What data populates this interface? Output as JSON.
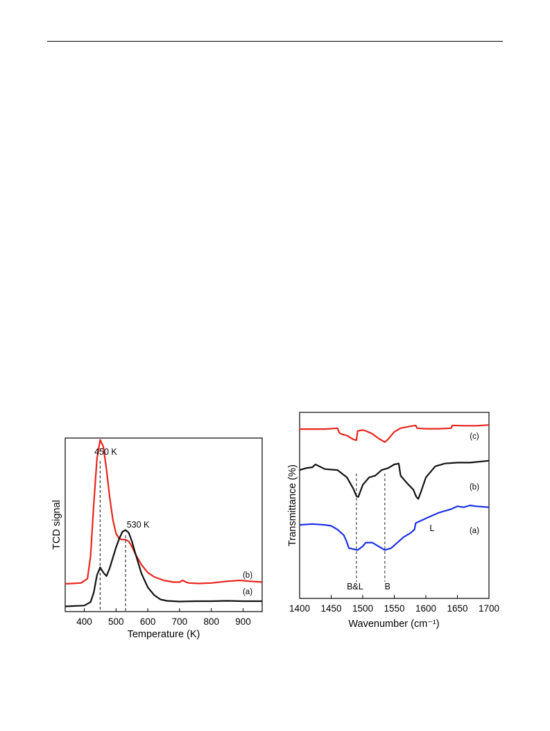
{
  "chart_data": [
    {
      "type": "line",
      "title": "",
      "xlabel": "Temperature (K)",
      "ylabel": "TCD signal",
      "xlim": [
        340,
        960
      ],
      "ylim": [
        0,
        1
      ],
      "xticks": [
        "400",
        "500",
        "600",
        "700",
        "800",
        "900"
      ],
      "grid": false,
      "legend": "none",
      "annotations": [
        {
          "text": "450 K",
          "x": 450
        },
        {
          "text": "530 K",
          "x": 530
        }
      ],
      "series": [
        {
          "name": "(b)",
          "color": "#e8241c",
          "x": [
            340,
            390,
            410,
            420,
            430,
            440,
            450,
            460,
            470,
            480,
            490,
            500,
            510,
            520,
            530,
            540,
            550,
            560,
            580,
            600,
            620,
            650,
            680,
            700,
            710,
            720,
            730,
            760,
            800,
            850,
            890,
            920,
            960
          ],
          "y": [
            0.16,
            0.165,
            0.19,
            0.32,
            0.62,
            0.88,
            0.99,
            0.95,
            0.82,
            0.66,
            0.53,
            0.45,
            0.42,
            0.415,
            0.415,
            0.405,
            0.375,
            0.335,
            0.27,
            0.225,
            0.2,
            0.18,
            0.17,
            0.17,
            0.18,
            0.17,
            0.165,
            0.162,
            0.165,
            0.175,
            0.18,
            0.175,
            0.17
          ]
        },
        {
          "name": "(a)",
          "color": "#111111",
          "x": [
            340,
            400,
            420,
            430,
            440,
            450,
            460,
            470,
            480,
            490,
            500,
            510,
            520,
            530,
            540,
            550,
            560,
            580,
            600,
            620,
            640,
            660,
            680,
            700,
            750,
            800,
            850,
            900,
            960
          ],
          "y": [
            0.03,
            0.035,
            0.055,
            0.11,
            0.21,
            0.255,
            0.225,
            0.205,
            0.25,
            0.31,
            0.37,
            0.42,
            0.46,
            0.47,
            0.455,
            0.405,
            0.34,
            0.22,
            0.14,
            0.095,
            0.07,
            0.062,
            0.06,
            0.058,
            0.06,
            0.06,
            0.062,
            0.06,
            0.06
          ]
        }
      ]
    },
    {
      "type": "line",
      "title": "",
      "xlabel": "Wavenumber (cm⁻¹)",
      "ylabel": "Transmittance (%)",
      "xlim": [
        1400,
        1700
      ],
      "ylim": [
        0,
        1
      ],
      "xticks": [
        "1400",
        "1450",
        "1500",
        "1550",
        "1600",
        "1650",
        "1700"
      ],
      "grid": false,
      "legend": "none",
      "annotations": [
        {
          "text": "B&L",
          "x": 1490
        },
        {
          "text": "B",
          "x": 1535
        },
        {
          "text": "L",
          "x": 1590
        }
      ],
      "series": [
        {
          "name": "(c)",
          "color": "#e8241c",
          "x": [
            1400,
            1420,
            1440,
            1460,
            1463,
            1465,
            1475,
            1485,
            1490,
            1492,
            1500,
            1505,
            1515,
            1525,
            1535,
            1540,
            1550,
            1560,
            1575,
            1584,
            1586,
            1600,
            1620,
            1640,
            1642,
            1660,
            1680,
            1700
          ],
          "y": [
            0.91,
            0.91,
            0.91,
            0.915,
            0.89,
            0.885,
            0.875,
            0.855,
            0.85,
            0.9,
            0.905,
            0.9,
            0.885,
            0.86,
            0.84,
            0.855,
            0.895,
            0.915,
            0.925,
            0.93,
            0.915,
            0.912,
            0.912,
            0.915,
            0.93,
            0.928,
            0.928,
            0.932
          ]
        },
        {
          "name": "(b)",
          "color": "#111111",
          "x": [
            1400,
            1410,
            1420,
            1425,
            1440,
            1460,
            1475,
            1485,
            1490,
            1493,
            1500,
            1510,
            1520,
            1530,
            1540,
            1550,
            1557,
            1560,
            1570,
            1580,
            1585,
            1588,
            1592,
            1600,
            1615,
            1630,
            1650,
            1670,
            1700
          ],
          "y": [
            0.69,
            0.7,
            0.705,
            0.72,
            0.695,
            0.69,
            0.65,
            0.59,
            0.55,
            0.545,
            0.61,
            0.65,
            0.66,
            0.69,
            0.7,
            0.72,
            0.725,
            0.66,
            0.62,
            0.585,
            0.545,
            0.535,
            0.57,
            0.65,
            0.71,
            0.725,
            0.73,
            0.73,
            0.74
          ]
        },
        {
          "name": "(a)",
          "color": "#1a2fe6",
          "x": [
            1400,
            1420,
            1440,
            1450,
            1460,
            1470,
            1474,
            1478,
            1485,
            1492,
            1500,
            1505,
            1515,
            1525,
            1535,
            1545,
            1555,
            1565,
            1575,
            1582,
            1584,
            1600,
            1620,
            1640,
            1650,
            1660,
            1670,
            1680,
            1700
          ],
          "y": [
            0.395,
            0.4,
            0.395,
            0.39,
            0.37,
            0.34,
            0.31,
            0.27,
            0.265,
            0.26,
            0.28,
            0.3,
            0.3,
            0.28,
            0.26,
            0.27,
            0.3,
            0.33,
            0.35,
            0.37,
            0.405,
            0.43,
            0.46,
            0.48,
            0.495,
            0.49,
            0.5,
            0.495,
            0.49
          ]
        }
      ]
    }
  ]
}
